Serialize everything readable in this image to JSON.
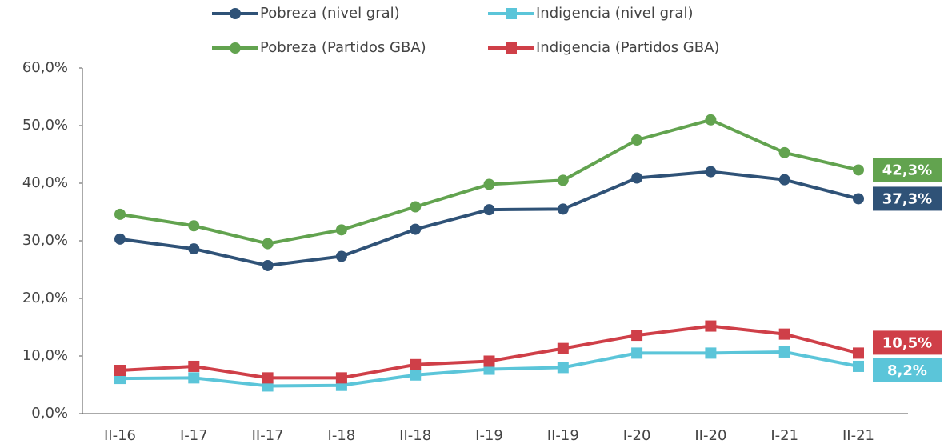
{
  "chart_data": {
    "type": "line",
    "categories": [
      "II-16",
      "I-17",
      "II-17",
      "I-18",
      "II-18",
      "I-19",
      "II-19",
      "I-20",
      "II-20",
      "I-21",
      "II-21"
    ],
    "series": [
      {
        "name": "Pobreza (nivel gral)",
        "color": "#2f5277",
        "marker": "circle",
        "values": [
          30.3,
          28.6,
          25.7,
          27.3,
          32.0,
          35.4,
          35.5,
          40.9,
          42.0,
          40.6,
          37.3
        ],
        "value_labels": [
          null,
          null,
          null,
          null,
          null,
          null,
          null,
          null,
          null,
          null,
          "37,3%"
        ]
      },
      {
        "name": "Indigencia (nivel gral)",
        "color": "#5bc5d9",
        "marker": "square",
        "values": [
          6.1,
          6.2,
          4.8,
          4.9,
          6.7,
          7.7,
          8.0,
          10.5,
          10.5,
          10.7,
          8.2
        ],
        "value_labels": [
          null,
          null,
          null,
          null,
          null,
          null,
          null,
          null,
          null,
          null,
          "8,2%"
        ]
      },
      {
        "name": "Pobreza (Partidos GBA)",
        "color": "#62a34f",
        "marker": "circle",
        "values": [
          34.6,
          32.6,
          29.5,
          31.9,
          35.9,
          39.8,
          40.5,
          47.5,
          51.0,
          45.3,
          42.3
        ],
        "value_labels": [
          null,
          null,
          null,
          null,
          null,
          null,
          null,
          null,
          null,
          null,
          "42,3%"
        ]
      },
      {
        "name": "Indigencia (Partidos GBA)",
        "color": "#cf3f48",
        "marker": "square",
        "values": [
          7.5,
          8.2,
          6.2,
          6.2,
          8.5,
          9.1,
          11.3,
          13.6,
          15.2,
          13.8,
          10.5
        ],
        "value_labels": [
          null,
          null,
          null,
          null,
          null,
          null,
          null,
          null,
          null,
          null,
          "10,5%"
        ]
      }
    ],
    "ylim": [
      0,
      60
    ],
    "yticks": [
      {
        "value": 0,
        "label": "0,0%"
      },
      {
        "value": 10,
        "label": "10,0%"
      },
      {
        "value": 20,
        "label": "20,0%"
      },
      {
        "value": 30,
        "label": "30,0%"
      },
      {
        "value": 40,
        "label": "40,0%"
      },
      {
        "value": 50,
        "label": "50,0%"
      },
      {
        "value": 60,
        "label": "60,0%"
      }
    ],
    "grid": false,
    "legend": "top"
  }
}
